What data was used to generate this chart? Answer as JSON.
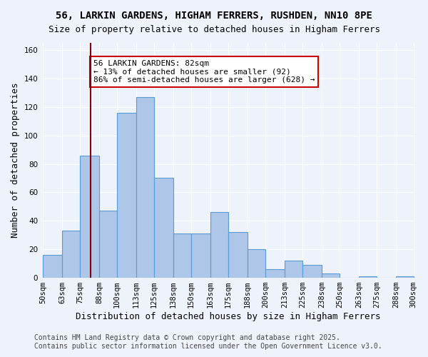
{
  "title_line1": "56, LARKIN GARDENS, HIGHAM FERRERS, RUSHDEN, NN10 8PE",
  "title_line2": "Size of property relative to detached houses in Higham Ferrers",
  "xlabel": "Distribution of detached houses by size in Higham Ferrers",
  "ylabel": "Number of detached properties",
  "bin_labels": [
    "50sqm",
    "63sqm",
    "75sqm",
    "88sqm",
    "100sqm",
    "113sqm",
    "125sqm",
    "138sqm",
    "150sqm",
    "163sqm",
    "175sqm",
    "188sqm",
    "200sqm",
    "213sqm",
    "225sqm",
    "238sqm",
    "250sqm",
    "263sqm",
    "275sqm",
    "288sqm",
    "300sqm"
  ],
  "bin_edges": [
    50,
    63,
    75,
    88,
    100,
    113,
    125,
    138,
    150,
    163,
    175,
    188,
    200,
    213,
    225,
    238,
    250,
    263,
    275,
    288,
    300
  ],
  "bar_heights": [
    16,
    33,
    86,
    47,
    116,
    127,
    70,
    31,
    31,
    46,
    32,
    20,
    6,
    12,
    9,
    3,
    0,
    1,
    0,
    1
  ],
  "bar_color": "#aec6e8",
  "bar_edge_color": "#5b9bd5",
  "property_size": 82,
  "vertical_line_color": "#8b0000",
  "annotation_text": "56 LARKIN GARDENS: 82sqm\n← 13% of detached houses are smaller (92)\n86% of semi-detached houses are larger (628) →",
  "annotation_box_color": "#ffffff",
  "annotation_box_edge_color": "#cc0000",
  "ylim": [
    0,
    165
  ],
  "yticks": [
    0,
    20,
    40,
    60,
    80,
    100,
    120,
    140,
    160
  ],
  "footer_line1": "Contains HM Land Registry data © Crown copyright and database right 2025.",
  "footer_line2": "Contains public sector information licensed under the Open Government Licence v3.0.",
  "background_color": "#eef3fb",
  "plot_background_color": "#eef3fb",
  "title_fontsize": 10,
  "axis_label_fontsize": 9,
  "tick_fontsize": 7.5,
  "annotation_fontsize": 8,
  "footer_fontsize": 7
}
